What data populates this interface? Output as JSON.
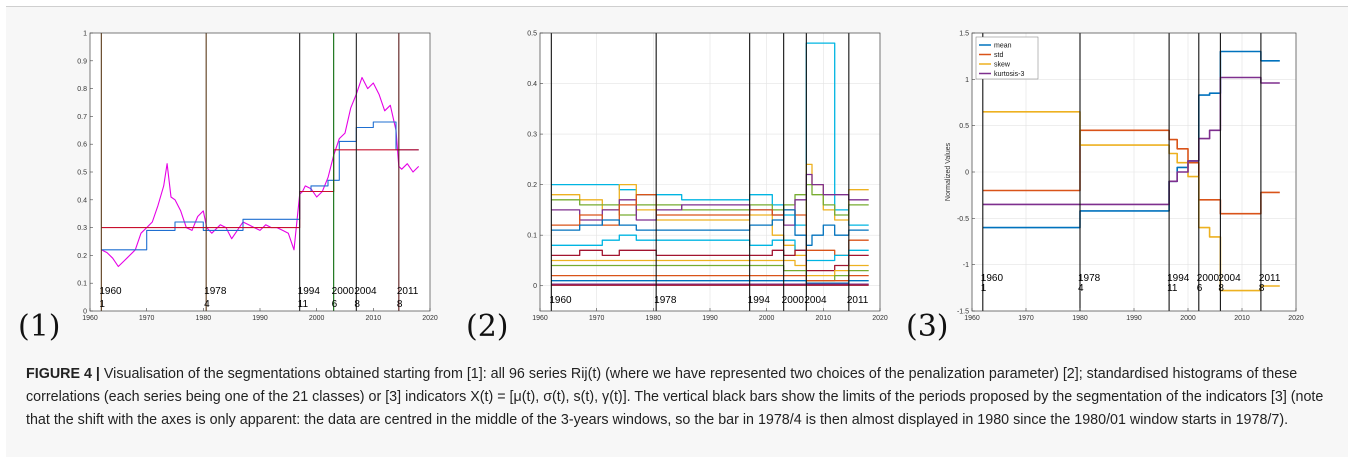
{
  "figure": {
    "caption": {
      "label": "FIGURE 4 |",
      "text": " Visualisation of the segmentations obtained starting from [1]: all 96 series Rij(t) (where we have represented two choices of the penalization parameter) [2]; standardised histograms of these correlations (each series being one of the 21 classes) or [3] indicators X(t) = [μ(t), σ(t), s(t), γ(t)]. The vertical black bars show the limits of the periods proposed by the segmentation of the indicators [3] (note that the shift with the axes is only apparent: the data are centred in the middle of the 3-years windows, so the bar in 1978/4 is then almost displayed in 1980 since the 1980/01 window starts in 1978/7)."
    },
    "panel_labels": [
      "(1)",
      "(2)",
      "(3)"
    ],
    "colors": {
      "magenta": "#e600e6",
      "blue": "#1f6fd1",
      "red": "#c8102e",
      "p3_mean": "#0072bd",
      "p3_std": "#d95319",
      "p3_skew": "#edb120",
      "p3_kurt": "#7e2f8e"
    }
  },
  "chart_data": [
    {
      "type": "line",
      "title": "",
      "xlabel": "",
      "ylabel": "",
      "xlim": [
        1960,
        2020
      ],
      "ylim": [
        0,
        1
      ],
      "x_ticks": [
        1960,
        1970,
        1980,
        1990,
        2000,
        2010,
        2020
      ],
      "y_ticks": [
        0,
        0.1,
        0.2,
        0.3,
        0.4,
        0.5,
        0.6,
        0.7,
        0.8,
        0.9,
        1
      ],
      "y_tick_labels": [
        "0",
        "0.1",
        "0.2",
        "0.3",
        "0.4",
        "0.5",
        "0.6",
        "0.7",
        "0.8",
        "0.9",
        "1"
      ],
      "grid": false,
      "vertical_bars": [
        {
          "x": 1962,
          "color": "#5a3a1a",
          "label_top": "1960",
          "label_bottom": "1"
        },
        {
          "x": 1980.5,
          "color": "#5a3a1a",
          "label_top": "1978",
          "label_bottom": "4"
        },
        {
          "x": 1997,
          "color": "#222222",
          "label_top": "1994",
          "label_bottom": "11"
        },
        {
          "x": 2003,
          "color": "#0a6a0a",
          "label_top": "2000",
          "label_bottom": "6"
        },
        {
          "x": 2007,
          "color": "#222222",
          "label_top": "2004",
          "label_bottom": "8"
        },
        {
          "x": 2014.5,
          "color": "#5a1a1a",
          "label_top": "2011",
          "label_bottom": "8"
        }
      ],
      "series": [
        {
          "color": "#e600e6",
          "x": [
            1962,
            1963,
            1964,
            1965,
            1966,
            1967,
            1968,
            1969,
            1970,
            1971,
            1972,
            1973,
            1973.6,
            1974.3,
            1975,
            1976,
            1977,
            1978,
            1979,
            1980,
            1980.6,
            1981.5,
            1983,
            1984,
            1985,
            1986,
            1987,
            1988,
            1989,
            1990,
            1991,
            1992,
            1993,
            1994,
            1995,
            1996,
            1997,
            1997.5,
            1998,
            1999,
            2000,
            2001,
            2002,
            2003,
            2004,
            2005,
            2006,
            2007,
            2008,
            2009,
            2010,
            2011,
            2012,
            2013,
            2014,
            2014.5,
            2015,
            2016,
            2017,
            2018
          ],
          "y": [
            0.22,
            0.21,
            0.19,
            0.16,
            0.18,
            0.2,
            0.22,
            0.28,
            0.3,
            0.32,
            0.38,
            0.45,
            0.53,
            0.41,
            0.4,
            0.36,
            0.3,
            0.29,
            0.34,
            0.36,
            0.3,
            0.28,
            0.31,
            0.3,
            0.26,
            0.29,
            0.32,
            0.31,
            0.3,
            0.29,
            0.31,
            0.3,
            0.3,
            0.29,
            0.28,
            0.22,
            0.42,
            0.43,
            0.45,
            0.44,
            0.41,
            0.43,
            0.48,
            0.56,
            0.62,
            0.64,
            0.73,
            0.78,
            0.84,
            0.8,
            0.82,
            0.78,
            0.72,
            0.74,
            0.65,
            0.52,
            0.51,
            0.53,
            0.5,
            0.52
          ]
        },
        {
          "color": "#1f6fd1",
          "x": [
            1962,
            1965,
            1965,
            1970,
            1970,
            1975,
            1975,
            1980,
            1980,
            1987,
            1987,
            1997,
            1997,
            1999,
            1999,
            2002,
            2002,
            2004,
            2004,
            2007,
            2007,
            2010,
            2010,
            2014,
            2014,
            2018
          ],
          "y": [
            0.22,
            0.22,
            0.22,
            0.22,
            0.29,
            0.29,
            0.32,
            0.32,
            0.29,
            0.29,
            0.33,
            0.33,
            0.43,
            0.43,
            0.45,
            0.45,
            0.47,
            0.47,
            0.61,
            0.61,
            0.66,
            0.66,
            0.68,
            0.68,
            0.58,
            0.58
          ]
        },
        {
          "color": "#c8102e",
          "x": [
            1962,
            1997,
            1997,
            2003,
            2003,
            2018
          ],
          "y": [
            0.3,
            0.3,
            0.43,
            0.43,
            0.58,
            0.58
          ]
        }
      ]
    },
    {
      "type": "line",
      "title": "",
      "xlabel": "",
      "ylabel": "",
      "xlim": [
        1960,
        2020
      ],
      "ylim": [
        -0.05,
        0.5
      ],
      "x_ticks": [
        1960,
        1970,
        1980,
        1990,
        2000,
        2010,
        2020
      ],
      "y_ticks": [
        0,
        0.1,
        0.2,
        0.3,
        0.4,
        0.5
      ],
      "y_tick_labels": [
        "0",
        "0.1",
        "0.2",
        "0.3",
        "0.4",
        "0.5"
      ],
      "grid": true,
      "vertical_bars": [
        {
          "x": 1962,
          "color": "#111111",
          "label_top": "1960"
        },
        {
          "x": 1980.5,
          "color": "#111111",
          "label_top": "1978"
        },
        {
          "x": 1997,
          "color": "#111111",
          "label_top": "1994"
        },
        {
          "x": 2003,
          "color": "#111111",
          "label_top": "2000"
        },
        {
          "x": 2007,
          "color": "#111111",
          "label_top": "2004"
        },
        {
          "x": 2014.5,
          "color": "#111111",
          "label_top": "2011"
        }
      ],
      "x": [
        1962,
        1967,
        1971,
        1974,
        1977,
        1980.5,
        1985,
        1990,
        1997,
        2001,
        2003,
        2005,
        2007,
        2008,
        2010,
        2012,
        2014.5,
        2018
      ],
      "series": [
        {
          "color": "#00b5e2",
          "y": [
            0.2,
            0.2,
            0.2,
            0.19,
            0.18,
            0.18,
            0.17,
            0.17,
            0.18,
            0.16,
            0.14,
            0.12,
            0.48,
            0.48,
            0.48,
            0.15,
            0.12,
            0.12
          ]
        },
        {
          "color": "#edb120",
          "y": [
            0.18,
            0.17,
            0.15,
            0.2,
            0.15,
            0.13,
            0.13,
            0.13,
            0.14,
            0.1,
            0.08,
            0.06,
            0.24,
            0.2,
            0.15,
            0.13,
            0.19,
            0.19
          ]
        },
        {
          "color": "#77ac30",
          "y": [
            0.17,
            0.16,
            0.16,
            0.14,
            0.16,
            0.16,
            0.15,
            0.15,
            0.16,
            0.15,
            0.16,
            0.18,
            0.2,
            0.18,
            0.16,
            0.14,
            0.16,
            0.16
          ]
        },
        {
          "color": "#7e2f8e",
          "y": [
            0.15,
            0.13,
            0.15,
            0.17,
            0.13,
            0.15,
            0.16,
            0.16,
            0.15,
            0.14,
            0.12,
            0.17,
            0.22,
            0.2,
            0.18,
            0.18,
            0.17,
            0.17
          ]
        },
        {
          "color": "#d95319",
          "y": [
            0.12,
            0.14,
            0.12,
            0.16,
            0.18,
            0.14,
            0.14,
            0.14,
            0.15,
            0.14,
            0.15,
            0.14,
            0.07,
            0.07,
            0.07,
            0.06,
            0.09,
            0.09
          ]
        },
        {
          "color": "#0072bd",
          "y": [
            0.11,
            0.12,
            0.13,
            0.12,
            0.11,
            0.11,
            0.11,
            0.11,
            0.12,
            0.13,
            0.15,
            0.1,
            0.08,
            0.1,
            0.12,
            0.1,
            0.11,
            0.11
          ]
        },
        {
          "color": "#00b5e2",
          "y": [
            0.08,
            0.08,
            0.09,
            0.1,
            0.09,
            0.09,
            0.09,
            0.09,
            0.08,
            0.09,
            0.09,
            0.07,
            0.05,
            0.05,
            0.05,
            0.06,
            0.07,
            0.07
          ]
        },
        {
          "color": "#a2142f",
          "y": [
            0.06,
            0.07,
            0.06,
            0.07,
            0.07,
            0.06,
            0.06,
            0.06,
            0.06,
            0.07,
            0.06,
            0.07,
            0.03,
            0.03,
            0.03,
            0.04,
            0.06,
            0.06
          ]
        },
        {
          "color": "#edb120",
          "y": [
            0.05,
            0.05,
            0.05,
            0.05,
            0.05,
            0.05,
            0.05,
            0.05,
            0.05,
            0.05,
            0.05,
            0.04,
            0.02,
            0.02,
            0.02,
            0.03,
            0.04,
            0.04
          ]
        },
        {
          "color": "#77ac30",
          "y": [
            0.04,
            0.04,
            0.04,
            0.04,
            0.04,
            0.04,
            0.04,
            0.04,
            0.04,
            0.04,
            0.03,
            0.03,
            0.01,
            0.01,
            0.01,
            0.02,
            0.03,
            0.03
          ]
        },
        {
          "color": "#d95319",
          "y": [
            0.02,
            0.02,
            0.02,
            0.02,
            0.02,
            0.02,
            0.02,
            0.02,
            0.02,
            0.02,
            0.02,
            0.02,
            0.01,
            0.01,
            0.01,
            0.01,
            0.02,
            0.02
          ]
        },
        {
          "color": "#0072bd",
          "y": [
            0.01,
            0.01,
            0.01,
            0.01,
            0.01,
            0.01,
            0.01,
            0.01,
            0.01,
            0.01,
            0.01,
            0.01,
            0.005,
            0.005,
            0.005,
            0.005,
            0.01,
            0.01
          ]
        },
        {
          "color": "#7e2f8e",
          "y": [
            0.003,
            0.003,
            0.003,
            0.003,
            0.003,
            0.003,
            0.003,
            0.003,
            0.003,
            0.003,
            0.003,
            0.003,
            0.003,
            0.003,
            0.003,
            0.003,
            0.003,
            0.003
          ]
        },
        {
          "color": "#a2142f",
          "y": [
            0.001,
            0.001,
            0.001,
            0.001,
            0.001,
            0.001,
            0.001,
            0.001,
            0.001,
            0.001,
            0.001,
            0.001,
            0.001,
            0.001,
            0.001,
            0.001,
            0.001,
            0.001
          ]
        }
      ]
    },
    {
      "type": "line",
      "title": "",
      "xlabel": "",
      "ylabel": "Normalized Values",
      "xlim": [
        1960,
        2020
      ],
      "ylim": [
        -1.5,
        1.5
      ],
      "x_ticks": [
        1960,
        1970,
        1980,
        1990,
        2000,
        2010,
        2020
      ],
      "y_ticks": [
        -1.5,
        -1,
        -0.5,
        0,
        0.5,
        1,
        1.5
      ],
      "y_tick_labels": [
        "-1.5",
        "-1",
        "-0.5",
        "0",
        "0.5",
        "1",
        "1.5"
      ],
      "grid": true,
      "legend": {
        "placement": "top-left",
        "entries": [
          "mean",
          "std",
          "skew",
          "kurtosis-3"
        ]
      },
      "vertical_bars": [
        {
          "x": 1962,
          "color": "#111111",
          "label_top": "1960",
          "label_bottom": "1"
        },
        {
          "x": 1980,
          "color": "#111111",
          "label_top": "1978",
          "label_bottom": "4"
        },
        {
          "x": 1996.5,
          "color": "#111111",
          "label_top": "1994",
          "label_bottom": "11"
        },
        {
          "x": 2002,
          "color": "#111111",
          "label_top": "2000",
          "label_bottom": "6"
        },
        {
          "x": 2006,
          "color": "#111111",
          "label_top": "2004",
          "label_bottom": "8"
        },
        {
          "x": 2013.5,
          "color": "#111111",
          "label_top": "2011",
          "label_bottom": "8"
        }
      ],
      "series": [
        {
          "name": "mean",
          "color": "#0072bd",
          "x": [
            1962,
            1980,
            1980,
            1996.5,
            1996.5,
            1998,
            1998,
            2000,
            2000,
            2002,
            2002,
            2004,
            2004,
            2006,
            2006,
            2013.5,
            2013.5,
            2017
          ],
          "y": [
            -0.6,
            -0.6,
            -0.42,
            -0.42,
            -0.1,
            -0.1,
            0.05,
            0.05,
            0.12,
            0.12,
            0.83,
            0.83,
            0.85,
            0.85,
            1.3,
            1.3,
            1.2,
            1.2
          ]
        },
        {
          "name": "std",
          "color": "#d95319",
          "x": [
            1962,
            1980,
            1980,
            1996.5,
            1996.5,
            1998,
            1998,
            2000,
            2000,
            2002,
            2002,
            2006,
            2006,
            2013.5,
            2013.5,
            2017
          ],
          "y": [
            -0.2,
            -0.2,
            0.45,
            0.45,
            0.35,
            0.35,
            0.25,
            0.25,
            0.1,
            0.1,
            -0.3,
            -0.3,
            -0.45,
            -0.45,
            -0.22,
            -0.22
          ]
        },
        {
          "name": "skew",
          "color": "#edb120",
          "x": [
            1962,
            1980,
            1980,
            1996.5,
            1996.5,
            1998,
            1998,
            2000,
            2000,
            2002,
            2002,
            2004,
            2004,
            2006,
            2006,
            2013.5,
            2013.5,
            2017
          ],
          "y": [
            0.65,
            0.65,
            0.29,
            0.29,
            0.2,
            0.2,
            0.1,
            0.1,
            -0.05,
            -0.05,
            -0.6,
            -0.6,
            -0.7,
            -0.7,
            -1.28,
            -1.28,
            -1.23,
            -1.23
          ]
        },
        {
          "name": "kurtosis-3",
          "color": "#7e2f8e",
          "x": [
            1962,
            1980,
            1980,
            1996.5,
            1996.5,
            1998,
            1998,
            2000,
            2000,
            2002,
            2002,
            2004,
            2004,
            2006,
            2006,
            2013.5,
            2013.5,
            2017
          ],
          "y": [
            -0.35,
            -0.35,
            -0.35,
            -0.35,
            -0.1,
            -0.1,
            0.0,
            0.0,
            0.12,
            0.12,
            0.36,
            0.36,
            0.45,
            0.45,
            1.02,
            1.02,
            0.96,
            0.96
          ]
        }
      ]
    }
  ]
}
